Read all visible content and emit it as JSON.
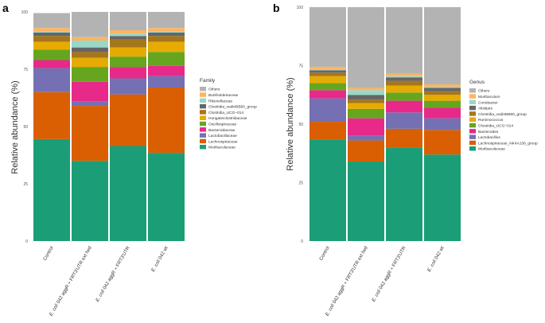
{
  "panels": [
    {
      "letter": "a",
      "legend_title": "Family"
    },
    {
      "letter": "b",
      "legend_title": "Genus"
    }
  ],
  "chart_data": [
    {
      "type": "bar",
      "stacked": true,
      "ylabel": "Relative abundance (%)",
      "xlabel": "",
      "ylim": [
        0,
        100
      ],
      "yticks": [
        "0",
        "25",
        "50",
        "75",
        "100"
      ],
      "categories": [
        "Control",
        "E. coli 042 aggR + FRT3'UTR ext fwd",
        "E. coli 042 aggR + FRT3'UTR",
        "E. coli 042 wt"
      ],
      "series": [
        {
          "name": "Muribaculaceae",
          "color": "#1b9e77",
          "values": [
            44.5,
            35,
            41.5,
            38.5
          ]
        },
        {
          "name": "Lachnospiraceae",
          "color": "#d95f02",
          "values": [
            20.5,
            24,
            22.5,
            28.5
          ]
        },
        {
          "name": "Lactobacillaceae",
          "color": "#7570b3",
          "values": [
            10.5,
            2,
            7,
            5
          ]
        },
        {
          "name": "Bacteroidaceae",
          "color": "#e7298a",
          "values": [
            3.5,
            8.5,
            5,
            4.5
          ]
        },
        {
          "name": "Oscillospiraceae",
          "color": "#66a61e",
          "values": [
            4.5,
            6.5,
            4.5,
            6
          ]
        },
        {
          "name": "Hungateiclostridiaceae",
          "color": "#e6ab02",
          "values": [
            3.5,
            4,
            4,
            4.5
          ]
        },
        {
          "name": "Clostridia_UCG−014",
          "color": "#a6761d",
          "values": [
            2.5,
            2.5,
            3.5,
            2.5
          ]
        },
        {
          "name": "Clostridia_vadinBB60_group",
          "color": "#666666",
          "values": [
            1.5,
            2,
            1.5,
            1.5
          ]
        },
        {
          "name": "Rikenellaceae",
          "color": "#99d8c9",
          "values": [
            0.5,
            3,
            1,
            0.5
          ]
        },
        {
          "name": "Burkholderiaceae",
          "color": "#fdb462",
          "values": [
            1.5,
            1.5,
            1.5,
            1.5
          ]
        },
        {
          "name": "Others",
          "color": "#b3b3b3",
          "values": [
            6.5,
            11,
            8,
            7
          ]
        }
      ]
    },
    {
      "type": "bar",
      "stacked": true,
      "ylabel": "Relative abundance (%)",
      "xlabel": "",
      "ylim": [
        0,
        100
      ],
      "yticks": [
        "0",
        "25",
        "50",
        "75",
        "100"
      ],
      "categories": [
        "Control",
        "E. coli 042 aggR + FRT3'UTR ext fwd",
        "E. coli 042 aggR + FRT3'UTR",
        "E. coli 042 wt"
      ],
      "series": [
        {
          "name": "Muribaculaceae",
          "color": "#1b9e77",
          "values": [
            43.5,
            34,
            40,
            37
          ]
        },
        {
          "name": "Lachnospiraceae_NK4A136_group",
          "color": "#d95f02",
          "values": [
            7.5,
            9,
            8,
            10.5
          ]
        },
        {
          "name": "Lactobacillus",
          "color": "#7570b3",
          "values": [
            10,
            2,
            7,
            5
          ]
        },
        {
          "name": "Bacteroides",
          "color": "#e7298a",
          "values": [
            3.5,
            7.5,
            5,
            4.5
          ]
        },
        {
          "name": "Clostridia_UCG−014",
          "color": "#66a61e",
          "values": [
            3,
            4,
            3.5,
            3
          ]
        },
        {
          "name": "Ruminococcus",
          "color": "#e6ab02",
          "values": [
            3,
            2.5,
            3,
            2.5
          ]
        },
        {
          "name": "Clostridia_vadinBB60_group",
          "color": "#a6761d",
          "values": [
            1.5,
            1.5,
            2,
            1.5
          ]
        },
        {
          "name": "Alistipes",
          "color": "#666666",
          "values": [
            1,
            2,
            1.5,
            1.5
          ]
        },
        {
          "name": "Coriobacter",
          "color": "#99d8c9",
          "values": [
            0.5,
            2,
            0.5,
            0.5
          ]
        },
        {
          "name": "Muribaculum",
          "color": "#fdb462",
          "values": [
            1,
            1,
            1,
            1
          ]
        },
        {
          "name": "Others",
          "color": "#b3b3b3",
          "values": [
            25.5,
            34.5,
            28.5,
            33
          ]
        }
      ]
    }
  ]
}
